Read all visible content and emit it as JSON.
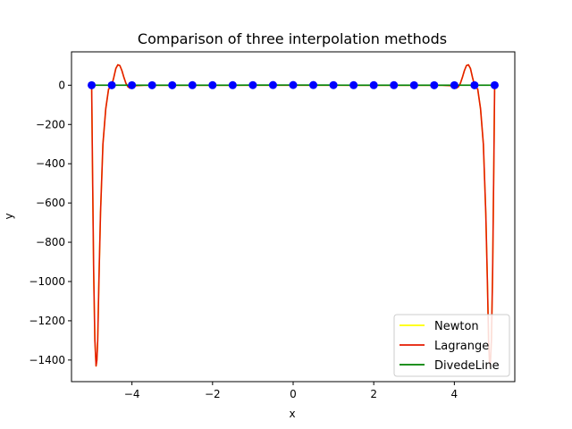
{
  "chart_data": {
    "type": "line",
    "title": "Comparison of three interpolation methods",
    "xlabel": "x",
    "ylabel": "y",
    "xlim": [
      -5.5,
      5.5
    ],
    "ylim": [
      -1510,
      170
    ],
    "xticks": [
      -4,
      -2,
      0,
      2,
      4
    ],
    "xtick_labels": [
      "−4",
      "−2",
      "0",
      "2",
      "4"
    ],
    "yticks": [
      0,
      -200,
      -400,
      -600,
      -800,
      -1000,
      -1200,
      -1400
    ],
    "ytick_labels": [
      "0",
      "−200",
      "−400",
      "−600",
      "−800",
      "−1000",
      "−1200",
      "−1400"
    ],
    "grid": false,
    "legend_position": "lower-right",
    "series": [
      {
        "name": "Newton",
        "color": "#ffff00",
        "kind": "interp"
      },
      {
        "name": "Lagrange",
        "color": "#e41a00",
        "kind": "interp"
      },
      {
        "name": "DivedeLine",
        "color": "#008000",
        "kind": "piecewise"
      }
    ],
    "nodes": {
      "color": "#0000ff",
      "x": [
        -5,
        -4.5,
        -4,
        -3.5,
        -3,
        -2.5,
        -2,
        -1.5,
        -1,
        -0.5,
        0,
        0.5,
        1,
        1.5,
        2,
        2.5,
        3,
        3.5,
        4,
        4.5,
        5
      ],
      "y": [
        0.038,
        0.047,
        0.059,
        0.075,
        0.1,
        0.138,
        0.2,
        0.308,
        0.5,
        0.8,
        1,
        0.8,
        0.5,
        0.308,
        0.2,
        0.138,
        0.1,
        0.075,
        0.059,
        0.047,
        0.038
      ]
    },
    "curve": {
      "x": [
        -5,
        -4.98,
        -4.95,
        -4.92,
        -4.89,
        -4.87,
        -4.85,
        -4.82,
        -4.78,
        -4.72,
        -4.65,
        -4.58,
        -4.5,
        -4.45,
        -4.4,
        -4.35,
        -4.3,
        -4.25,
        -4.2,
        -4.15,
        -4.1,
        -4.05,
        -4.0,
        -3.9,
        -3.8,
        -3.7,
        -3.5,
        -3.0,
        0,
        3.0,
        3.5,
        3.7,
        3.8,
        3.9,
        4.0,
        4.05,
        4.1,
        4.15,
        4.2,
        4.25,
        4.3,
        4.35,
        4.4,
        4.45,
        4.5,
        4.58,
        4.65,
        4.72,
        4.78,
        4.82,
        4.85,
        4.87,
        4.89,
        4.92,
        4.95,
        4.98,
        5
      ],
      "y": [
        0,
        -400,
        -950,
        -1300,
        -1430,
        -1400,
        -1300,
        -1000,
        -650,
        -300,
        -120,
        -20,
        0,
        40,
        85,
        104,
        100,
        75,
        40,
        10,
        -8,
        -15,
        -8,
        -2,
        -1,
        0,
        0,
        0,
        0,
        0,
        0,
        0,
        -1,
        -2,
        -8,
        -15,
        -8,
        10,
        40,
        75,
        100,
        104,
        85,
        40,
        0,
        -20,
        -120,
        -300,
        -650,
        -1000,
        -1300,
        -1400,
        -1430,
        -1300,
        -950,
        -400,
        0
      ]
    }
  }
}
